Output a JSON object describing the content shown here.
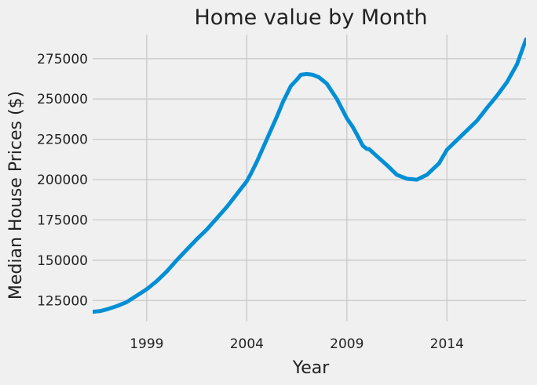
{
  "chart_data": {
    "type": "line",
    "title": "Home value by Month",
    "xlabel": "Year",
    "ylabel": "Median House Prices ($)",
    "xlim": [
      1996.3,
      2017.95
    ],
    "ylim": [
      112000,
      290000
    ],
    "x_ticks": [
      1999,
      2004,
      2009,
      2014
    ],
    "y_ticks": [
      125000,
      150000,
      175000,
      200000,
      225000,
      250000,
      275000
    ],
    "grid": true,
    "line_color": "#008fd5",
    "background": "#f0f0f0",
    "series": [
      {
        "x": [
          1996.3,
          1996.7,
          1997.0,
          1997.5,
          1998.0,
          1998.5,
          1999.0,
          1999.5,
          2000.0,
          2000.5,
          2001.0,
          2001.5,
          2002.0,
          2002.5,
          2003.0,
          2003.5,
          2004.0,
          2004.2,
          2004.5,
          2005.0,
          2005.5,
          2005.8,
          2006.2,
          2006.5,
          2006.7,
          2007.0,
          2007.3,
          2007.6,
          2008.0,
          2008.5,
          2009.0,
          2009.3,
          2009.5,
          2009.8,
          2010.0,
          2010.1,
          2010.5,
          2011.0,
          2011.5,
          2012.0,
          2012.5,
          2013.0,
          2013.3,
          2013.6,
          2014.0,
          2014.5,
          2015.0,
          2015.5,
          2016.0,
          2016.5,
          2017.0,
          2017.5,
          2017.95
        ],
        "y": [
          118000,
          118500,
          119500,
          121500,
          124000,
          128000,
          132000,
          137000,
          143000,
          150000,
          156500,
          163000,
          169000,
          176000,
          183000,
          191000,
          199000,
          203500,
          211000,
          225000,
          239000,
          248000,
          258000,
          262000,
          265000,
          265500,
          265000,
          263500,
          259500,
          250000,
          238000,
          232500,
          228000,
          221000,
          219000,
          219000,
          214500,
          209000,
          203000,
          200500,
          200000,
          203000,
          206500,
          210000,
          218500,
          224500,
          230500,
          236500,
          244500,
          252000,
          260500,
          271500,
          287000
        ]
      }
    ]
  }
}
